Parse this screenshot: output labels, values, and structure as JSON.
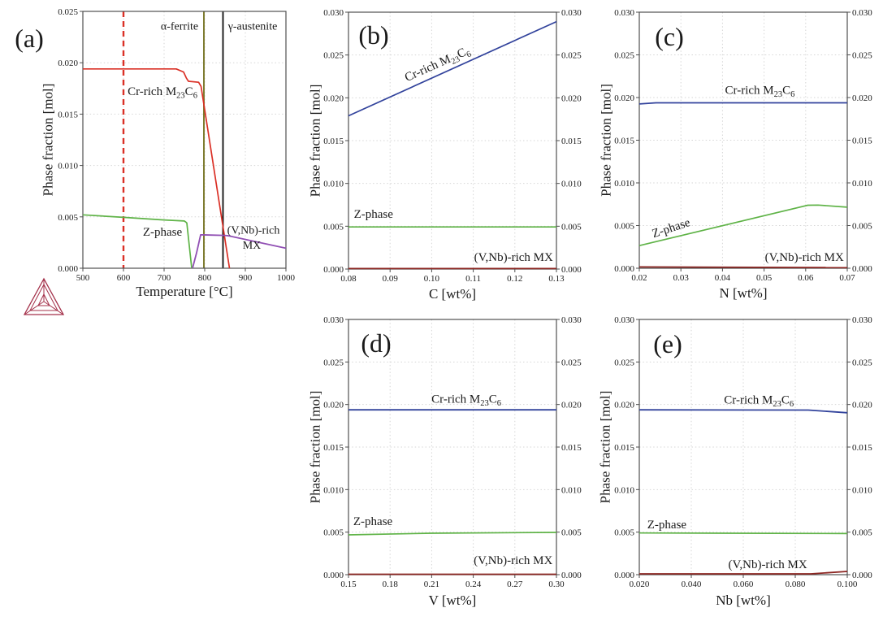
{
  "figure_title": "",
  "colors": {
    "m23c6_red": "#da3026",
    "m23c6_blue": "#32439c",
    "z_phase_green": "#5fb347",
    "mx_purple": "#9150b4",
    "mx_maroon": "#8c2622",
    "ferrite_boundary_olive": "#7e7c30",
    "austenite_boundary_black": "#222222",
    "grid": "#d6d6d6",
    "axis": "#4f4f4f",
    "logo": "#a4314a"
  },
  "chart_data": [
    {
      "id": "a",
      "letter": "(a)",
      "type": "line",
      "xlabel": "Temperature [°C]",
      "ylabel": "Phase fraction [mol]",
      "xlim": [
        500,
        1000
      ],
      "ylim": [
        0,
        0.025
      ],
      "xticks": {
        "values": [
          500,
          600,
          700,
          800,
          900,
          1000
        ],
        "labels": [
          "500",
          "600",
          "700",
          "800",
          "900",
          "1000"
        ]
      },
      "yticks": {
        "values": [
          0,
          0.005,
          0.01,
          0.015,
          0.02,
          0.025
        ],
        "labels": [
          "0.000",
          "0.005",
          "0.010",
          "0.015",
          "0.020",
          "0.025"
        ]
      },
      "grid": true,
      "right_ticks": false,
      "series": [
        {
          "name": "Cr-rich M23C6",
          "color": "#da3026",
          "width": 1.7,
          "points": [
            [
              500,
              0.0194
            ],
            [
              730,
              0.0194
            ],
            [
              748,
              0.0191
            ],
            [
              755,
              0.0185
            ],
            [
              760,
              0.0182
            ],
            [
              785,
              0.0181
            ],
            [
              791,
              0.0177
            ],
            [
              861,
              0.0
            ]
          ]
        },
        {
          "name": "Z-phase",
          "color": "#5fb347",
          "width": 1.7,
          "points": [
            [
              500,
              0.0052
            ],
            [
              600,
              0.00495
            ],
            [
              700,
              0.0047
            ],
            [
              750,
              0.0046
            ],
            [
              754,
              0.00448
            ],
            [
              756,
              0.0044
            ],
            [
              768,
              0.0
            ]
          ]
        },
        {
          "name": "(V,Nb)-rich MX",
          "color": "#9150b4",
          "width": 1.8,
          "points": [
            [
              770,
              0.0
            ],
            [
              780,
              0.0015
            ],
            [
              790,
              0.00325
            ],
            [
              850,
              0.0032
            ],
            [
              860,
              0.00315
            ],
            [
              1000,
              0.00195
            ]
          ]
        }
      ],
      "vlines": [
        {
          "name": "vline-600-red-dashed",
          "x": 600,
          "color": "#da3026",
          "width": 2.4,
          "dash": "7,5"
        },
        {
          "name": "vline-798-olive",
          "x": 798,
          "color": "#7e7c30",
          "width": 2,
          "dash": ""
        },
        {
          "name": "vline-845-black",
          "x": 845,
          "color": "#222222",
          "width": 2,
          "dash": ""
        }
      ],
      "annotations": [
        {
          "name": "region-label-alpha-ferrite",
          "text": "α-ferrite",
          "x": 738,
          "y": 0.0236,
          "size": 14
        },
        {
          "name": "region-label-gamma-austenite",
          "text": "γ-austenite",
          "x": 918,
          "y": 0.0236,
          "size": 14
        },
        {
          "name": "curve-label-m23c6",
          "parts": [
            {
              "t": "Cr-rich M"
            },
            {
              "t": "23",
              "sub": true
            },
            {
              "t": "C"
            },
            {
              "t": "6",
              "sub": true
            }
          ],
          "x": 696,
          "y": 0.01725,
          "size": 15
        },
        {
          "name": "curve-label-z-phase",
          "text": "Z-phase",
          "x": 696,
          "y": 0.00356,
          "size": 15
        },
        {
          "name": "curve-label-mx-line1",
          "text": "(V,Nb)-rich",
          "x": 920,
          "y": 0.00372,
          "size": 14
        },
        {
          "name": "curve-label-mx-line2",
          "text": "MX",
          "x": 916,
          "y": 0.00229,
          "size": 14
        }
      ]
    },
    {
      "id": "b",
      "letter": "(b)",
      "type": "line",
      "xlabel": "C [wt%]",
      "ylabel": "Phase fraction [mol]",
      "xlim": [
        0.08,
        0.13
      ],
      "ylim": [
        0,
        0.03
      ],
      "xticks": {
        "values": [
          0.08,
          0.09,
          0.1,
          0.11,
          0.12,
          0.13
        ],
        "labels": [
          "0.08",
          "0.09",
          "0.10",
          "0.11",
          "0.12",
          "0.13"
        ]
      },
      "yticks": {
        "values": [
          0,
          0.005,
          0.01,
          0.015,
          0.02,
          0.025,
          0.03
        ],
        "labels": [
          "0.000",
          "0.005",
          "0.010",
          "0.015",
          "0.020",
          "0.025",
          "0.030"
        ]
      },
      "grid": true,
      "right_ticks": true,
      "series": [
        {
          "name": "Cr-rich M23C6",
          "color": "#32439c",
          "width": 1.7,
          "points": [
            [
              0.08,
              0.0179
            ],
            [
              0.13,
              0.0289
            ]
          ]
        },
        {
          "name": "Z-phase",
          "color": "#5fb347",
          "width": 1.7,
          "points": [
            [
              0.08,
              0.00492
            ],
            [
              0.13,
              0.00492
            ]
          ]
        },
        {
          "name": "(V,Nb)-rich MX",
          "color": "#8c2622",
          "width": 1.8,
          "points": [
            [
              0.08,
              6e-05
            ],
            [
              0.13,
              6e-05
            ]
          ]
        }
      ],
      "vlines": [],
      "annotations": [
        {
          "name": "curve-label-m23c6",
          "parts": [
            {
              "t": "Cr-rich M"
            },
            {
              "t": "23",
              "sub": true
            },
            {
              "t": "C"
            },
            {
              "t": "6",
              "sub": true
            }
          ],
          "x": 0.1013,
          "y": 0.024,
          "rot": -24,
          "size": 15
        },
        {
          "name": "curve-label-z-phase",
          "text": "Z-phase",
          "x": 0.086,
          "y": 0.00646,
          "size": 15
        },
        {
          "name": "curve-label-mx",
          "text": "(V,Nb)-rich MX",
          "x": 0.1197,
          "y": 0.00142,
          "size": 15
        }
      ]
    },
    {
      "id": "c",
      "letter": "(c)",
      "type": "line",
      "xlabel": "N [wt%]",
      "ylabel": "Phase fraction [mol]",
      "xlim": [
        0.02,
        0.07
      ],
      "ylim": [
        0,
        0.03
      ],
      "xticks": {
        "values": [
          0.02,
          0.03,
          0.04,
          0.05,
          0.06,
          0.07
        ],
        "labels": [
          "0.02",
          "0.03",
          "0.04",
          "0.05",
          "0.06",
          "0.07"
        ]
      },
      "yticks": {
        "values": [
          0,
          0.005,
          0.01,
          0.015,
          0.02,
          0.025,
          0.03
        ],
        "labels": [
          "0.000",
          "0.005",
          "0.010",
          "0.015",
          "0.020",
          "0.025",
          "0.030"
        ]
      },
      "grid": true,
      "right_ticks": true,
      "series": [
        {
          "name": "Cr-rich M23C6",
          "color": "#32439c",
          "width": 1.7,
          "points": [
            [
              0.02,
              0.01925
            ],
            [
              0.024,
              0.01938
            ],
            [
              0.07,
              0.01938
            ]
          ]
        },
        {
          "name": "Z-phase",
          "color": "#5fb347",
          "width": 1.7,
          "points": [
            [
              0.02,
              0.00265
            ],
            [
              0.0605,
              0.00738
            ],
            [
              0.063,
              0.0074
            ],
            [
              0.07,
              0.00715
            ]
          ]
        },
        {
          "name": "(V,Nb)-rich MX",
          "color": "#8c2622",
          "width": 1.8,
          "points": [
            [
              0.02,
              0.00015
            ],
            [
              0.07,
              8e-05
            ]
          ]
        }
      ],
      "vlines": [],
      "annotations": [
        {
          "name": "curve-label-m23c6",
          "parts": [
            {
              "t": "Cr-rich M"
            },
            {
              "t": "23",
              "sub": true
            },
            {
              "t": "C"
            },
            {
              "t": "6",
              "sub": true
            }
          ],
          "x": 0.049,
          "y": 0.0209,
          "size": 15
        },
        {
          "name": "curve-label-z-phase",
          "text": "Z-phase",
          "x": 0.0276,
          "y": 0.00476,
          "rot": -18,
          "size": 15
        },
        {
          "name": "curve-label-mx",
          "text": "(V,Nb)-rich MX",
          "x": 0.0597,
          "y": 0.00133,
          "size": 15
        }
      ]
    },
    {
      "id": "d",
      "letter": "(d)",
      "type": "line",
      "xlabel": "V [wt%]",
      "ylabel": "Phase fraction [mol]",
      "xlim": [
        0.15,
        0.3
      ],
      "ylim": [
        0,
        0.03
      ],
      "xticks": {
        "values": [
          0.15,
          0.18,
          0.21,
          0.24,
          0.27,
          0.3
        ],
        "labels": [
          "0.15",
          "0.18",
          "0.21",
          "0.24",
          "0.27",
          "0.30"
        ]
      },
      "yticks": {
        "values": [
          0,
          0.005,
          0.01,
          0.015,
          0.02,
          0.025,
          0.03
        ],
        "labels": [
          "0.000",
          "0.005",
          "0.010",
          "0.015",
          "0.020",
          "0.025",
          "0.030"
        ]
      },
      "grid": true,
      "right_ticks": true,
      "series": [
        {
          "name": "Cr-rich M23C6",
          "color": "#32439c",
          "width": 1.8,
          "points": [
            [
              0.15,
              0.01938
            ],
            [
              0.3,
              0.01938
            ]
          ]
        },
        {
          "name": "Z-phase",
          "color": "#5fb347",
          "width": 1.7,
          "points": [
            [
              0.15,
              0.00468
            ],
            [
              0.21,
              0.00487
            ],
            [
              0.3,
              0.00497
            ]
          ]
        },
        {
          "name": "(V,Nb)-rich MX",
          "color": "#8c2622",
          "width": 1.8,
          "points": [
            [
              0.15,
              5e-05
            ],
            [
              0.3,
              5e-05
            ]
          ]
        }
      ],
      "vlines": [],
      "annotations": [
        {
          "name": "curve-label-m23c6",
          "parts": [
            {
              "t": "Cr-rich M"
            },
            {
              "t": "23",
              "sub": true
            },
            {
              "t": "C"
            },
            {
              "t": "6",
              "sub": true
            }
          ],
          "x": 0.235,
          "y": 0.0207,
          "size": 15
        },
        {
          "name": "curve-label-z-phase",
          "text": "Z-phase",
          "x": 0.1676,
          "y": 0.00631,
          "size": 15
        },
        {
          "name": "curve-label-mx",
          "text": "(V,Nb)-rich MX",
          "x": 0.2688,
          "y": 0.00172,
          "size": 15
        }
      ]
    },
    {
      "id": "e",
      "letter": "(e)",
      "type": "line",
      "xlabel": "Nb [wt%]",
      "ylabel": "Phase fraction [mol]",
      "xlim": [
        0.02,
        0.1
      ],
      "ylim": [
        0,
        0.03
      ],
      "xticks": {
        "values": [
          0.02,
          0.04,
          0.06,
          0.08,
          0.1
        ],
        "labels": [
          "0.020",
          "0.040",
          "0.060",
          "0.080",
          "0.100"
        ]
      },
      "yticks": {
        "values": [
          0,
          0.005,
          0.01,
          0.015,
          0.02,
          0.025,
          0.03
        ],
        "labels": [
          "0.000",
          "0.005",
          "0.010",
          "0.015",
          "0.020",
          "0.025",
          "0.030"
        ]
      },
      "grid": true,
      "right_ticks": true,
      "series": [
        {
          "name": "Cr-rich M23C6",
          "color": "#32439c",
          "width": 1.8,
          "points": [
            [
              0.02,
              0.01938
            ],
            [
              0.085,
              0.01935
            ],
            [
              0.1,
              0.01903
            ]
          ]
        },
        {
          "name": "Z-phase",
          "color": "#5fb347",
          "width": 1.7,
          "points": [
            [
              0.02,
              0.0049
            ],
            [
              0.1,
              0.00483
            ]
          ]
        },
        {
          "name": "(V,Nb)-rich MX",
          "color": "#8c2622",
          "width": 1.8,
          "points": [
            [
              0.02,
              0.0001
            ],
            [
              0.086,
              0.0001
            ],
            [
              0.1,
              0.00038
            ]
          ]
        }
      ],
      "vlines": [],
      "annotations": [
        {
          "name": "curve-label-m23c6",
          "parts": [
            {
              "t": "Cr-rich M"
            },
            {
              "t": "23",
              "sub": true
            },
            {
              "t": "C"
            },
            {
              "t": "6",
              "sub": true
            }
          ],
          "x": 0.066,
          "y": 0.0206,
          "size": 15
        },
        {
          "name": "curve-label-z-phase",
          "text": "Z-phase",
          "x": 0.0306,
          "y": 0.00592,
          "size": 15
        },
        {
          "name": "curve-label-mx",
          "text": "(V,Nb)-rich MX",
          "x": 0.0694,
          "y": 0.00124,
          "size": 15
        }
      ]
    }
  ]
}
